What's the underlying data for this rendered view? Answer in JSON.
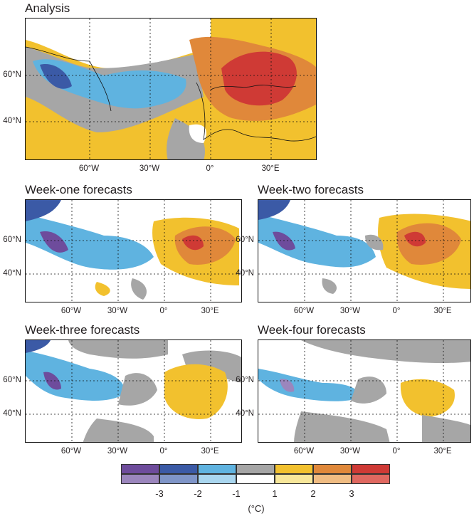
{
  "panels": {
    "analysis": {
      "title": "Analysis"
    },
    "week1": {
      "title": "Week-one forecasts"
    },
    "week2": {
      "title": "Week-two forecasts"
    },
    "week3": {
      "title": "Week-three forecasts"
    },
    "week4": {
      "title": "Week-four forecasts"
    }
  },
  "axes": {
    "lat_labels": [
      "60°N",
      "40°N"
    ],
    "lon_labels": [
      "60°W",
      "30°W",
      "0°",
      "30°E"
    ]
  },
  "legend": {
    "tick_labels": [
      "-3",
      "-2",
      "-1",
      "1",
      "2",
      "3"
    ],
    "unit": "(°C)",
    "colors_dark": [
      "#6e4c9c",
      "#3b5aa6",
      "#5fb3e0",
      "#a6a6a6",
      "#f2c12e",
      "#e0883a",
      "#cf3a35"
    ],
    "colors_light": [
      "#9b86bd",
      "#7f95c8",
      "#a9d6ef",
      "#ffffff",
      "#f8e79a",
      "#f0bc82",
      "#e06860"
    ]
  }
}
